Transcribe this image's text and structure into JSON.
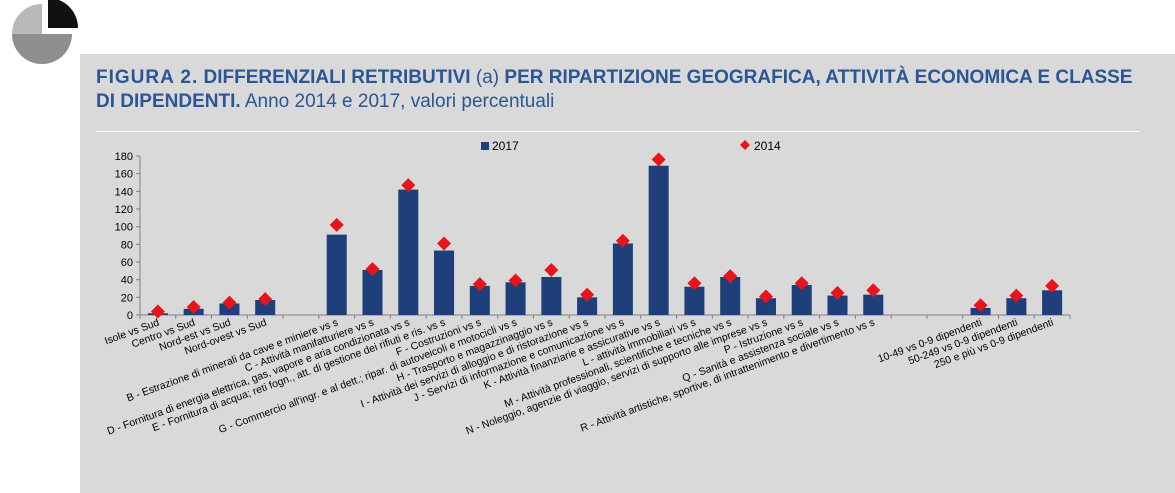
{
  "figure": {
    "label": "FIGURA 2.",
    "title_bold": "DIFFERENZIALI RETRIBUTIVI",
    "title_note": "(a)",
    "title_rest": "PER RIPARTIZIONE GEOGRAFICA, ATTIVITÀ ECONOMICA E CLASSE",
    "title_line2_bold": "DI DIPENDENTI.",
    "title_line2_rest": "Anno 2014 e 2017, valori percentuali"
  },
  "colors": {
    "bar": "#1f3f7a",
    "marker": "#e8141b",
    "title": "#2a5596",
    "panel": "#d9d9d9"
  },
  "chart_data": {
    "type": "bar",
    "ylim": [
      0,
      180
    ],
    "yticks": [
      0,
      20,
      40,
      60,
      80,
      100,
      120,
      140,
      160,
      180
    ],
    "legend": {
      "placement": "top",
      "items": [
        "2017",
        "2014"
      ]
    },
    "grid": false,
    "categories": [
      "Isole vs Sud",
      "Centro vs Sud",
      "Nord-est vs Sud",
      "Nord-ovest vs Sud",
      "",
      "B - Estrazione di minerali da cave e miniere vs s",
      "C - Attività manifatturiere vs s",
      "D - Fornitura di energia elettrica, gas, vapore e aria condizionata vs s",
      "E - Fornitura di acqua; reti fogn., att. di gestione dei rifiuti e ris. vs s",
      "F - Costruzioni vs s",
      "G - Commercio all'ingr. e al dett.; ripar. di autoveicoli e motocicli vs s",
      "H - Trasporto e magazzinaggio vs s",
      "I - Attività dei servizi di alloggio e di ristorazione vs s",
      "J - Servizi di informazione e comunicazione vs s",
      "K - Attività finanziarie e assicurative vs s",
      "L - attività immobiliari vs s",
      "M - Attività professionali, scientifiche e tecniche vs s",
      "N - Noleggio, agenzie di viaggio, servizi di supporto alle imprese vs s",
      "P - Istruzione vs s",
      "Q - Sanità e assistenza sociale vs s",
      "R - Attività artistiche, sportive, di intrattenimento e divertimento vs s",
      "",
      "",
      "10-49 vs 0-9 dipendenti",
      "50-249 vs 0-9  dipendenti",
      "250 e più vs 0-9  dipendenti"
    ],
    "series": [
      {
        "name": "2017",
        "kind": "bar",
        "values": [
          2,
          7,
          13,
          17,
          null,
          91,
          51,
          142,
          73,
          33,
          37,
          43,
          20,
          81,
          169,
          32,
          43,
          19,
          34,
          22,
          23,
          null,
          null,
          8,
          19,
          28
        ]
      },
      {
        "name": "2014",
        "kind": "marker",
        "values": [
          4,
          9,
          14,
          18,
          null,
          102,
          52,
          147,
          81,
          35,
          39,
          51,
          23,
          84,
          176,
          36,
          44,
          21,
          36,
          25,
          28,
          null,
          null,
          11,
          22,
          33
        ]
      }
    ]
  }
}
